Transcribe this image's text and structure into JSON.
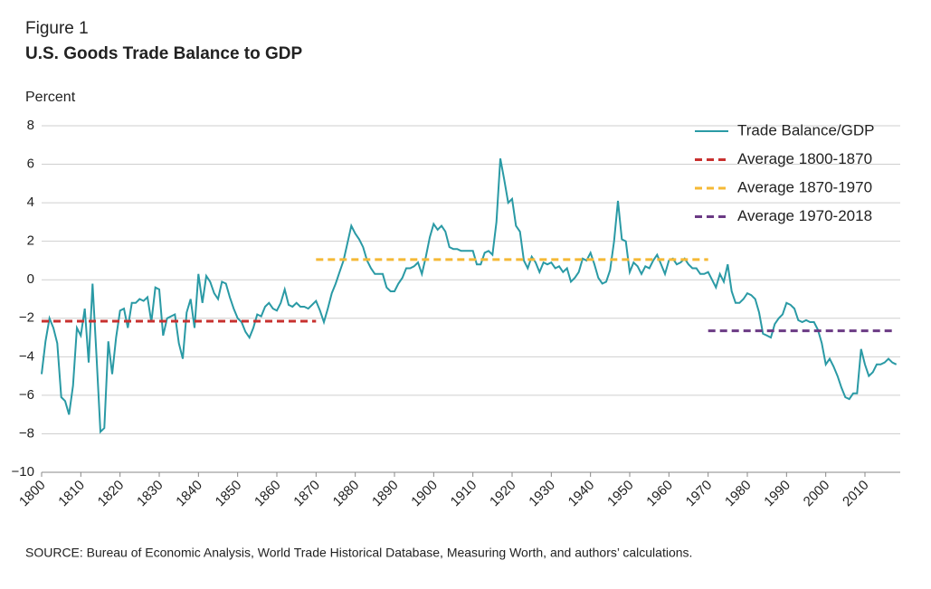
{
  "chart_data": {
    "type": "line",
    "label": "Figure 1",
    "title": "U.S. Goods Trade Balance to GDP",
    "y_axis_label": "Percent",
    "source": "SOURCE: Bureau of Economic Analysis, World Trade Historical Database, Measuring Worth, and authors’ calculations.",
    "xlim": [
      1800,
      2019
    ],
    "ylim": [
      -10,
      8
    ],
    "xticks": [
      1800,
      1810,
      1820,
      1830,
      1840,
      1850,
      1860,
      1870,
      1880,
      1890,
      1900,
      1910,
      1920,
      1930,
      1940,
      1950,
      1960,
      1970,
      1980,
      1990,
      2000,
      2010
    ],
    "yticks": [
      {
        "value": -10,
        "label": "−10"
      },
      {
        "value": -8,
        "label": "−8"
      },
      {
        "value": -6,
        "label": "−6"
      },
      {
        "value": -4,
        "label": "−4"
      },
      {
        "value": -2,
        "label": "−2"
      },
      0,
      2,
      4,
      6,
      8
    ],
    "grid": true,
    "legend": "upper right",
    "series": [
      {
        "name": "Trade Balance/GDP",
        "color": "#2a9aa5",
        "dashed": false,
        "x": [
          1800,
          1801,
          1802,
          1803,
          1804,
          1805,
          1806,
          1807,
          1808,
          1809,
          1810,
          1811,
          1812,
          1813,
          1814,
          1815,
          1816,
          1817,
          1818,
          1819,
          1820,
          1821,
          1822,
          1823,
          1824,
          1825,
          1826,
          1827,
          1828,
          1829,
          1830,
          1831,
          1832,
          1833,
          1834,
          1835,
          1836,
          1837,
          1838,
          1839,
          1840,
          1841,
          1842,
          1843,
          1844,
          1845,
          1846,
          1847,
          1848,
          1849,
          1850,
          1851,
          1852,
          1853,
          1854,
          1855,
          1856,
          1857,
          1858,
          1859,
          1860,
          1861,
          1862,
          1863,
          1864,
          1865,
          1866,
          1867,
          1868,
          1869,
          1870,
          1871,
          1872,
          1873,
          1874,
          1875,
          1876,
          1877,
          1878,
          1879,
          1880,
          1881,
          1882,
          1883,
          1884,
          1885,
          1886,
          1887,
          1888,
          1889,
          1890,
          1891,
          1892,
          1893,
          1894,
          1895,
          1896,
          1897,
          1898,
          1899,
          1900,
          1901,
          1902,
          1903,
          1904,
          1905,
          1906,
          1907,
          1908,
          1909,
          1910,
          1911,
          1912,
          1913,
          1914,
          1915,
          1916,
          1917,
          1918,
          1919,
          1920,
          1921,
          1922,
          1923,
          1924,
          1925,
          1926,
          1927,
          1928,
          1929,
          1930,
          1931,
          1932,
          1933,
          1934,
          1935,
          1936,
          1937,
          1938,
          1939,
          1940,
          1941,
          1942,
          1943,
          1944,
          1945,
          1946,
          1947,
          1948,
          1949,
          1950,
          1951,
          1952,
          1953,
          1954,
          1955,
          1956,
          1957,
          1958,
          1959,
          1960,
          1961,
          1962,
          1963,
          1964,
          1965,
          1966,
          1967,
          1968,
          1969,
          1970,
          1971,
          1972,
          1973,
          1974,
          1975,
          1976,
          1977,
          1978,
          1979,
          1980,
          1981,
          1982,
          1983,
          1984,
          1985,
          1986,
          1987,
          1988,
          1989,
          1990,
          1991,
          1992,
          1993,
          1994,
          1995,
          1996,
          1997,
          1998,
          1999,
          2000,
          2001,
          2002,
          2003,
          2004,
          2005,
          2006,
          2007,
          2008,
          2009,
          2010,
          2011,
          2012,
          2013,
          2014,
          2015,
          2016,
          2017,
          2018
        ],
        "values": [
          -4.9,
          -3.2,
          -2.0,
          -2.5,
          -3.3,
          -6.1,
          -6.3,
          -7.0,
          -5.5,
          -2.5,
          -2.9,
          -1.5,
          -4.3,
          -0.2,
          -4.0,
          -7.9,
          -7.7,
          -3.2,
          -4.9,
          -3.0,
          -1.6,
          -1.5,
          -2.5,
          -1.2,
          -1.2,
          -1.0,
          -1.1,
          -0.9,
          -2.2,
          -0.4,
          -0.5,
          -2.9,
          -2.0,
          -1.9,
          -1.8,
          -3.3,
          -4.1,
          -1.7,
          -1.0,
          -2.5,
          0.3,
          -1.2,
          0.2,
          -0.1,
          -0.7,
          -1.0,
          -0.1,
          -0.2,
          -0.9,
          -1.5,
          -2.0,
          -2.2,
          -2.7,
          -3.0,
          -2.5,
          -1.8,
          -1.9,
          -1.4,
          -1.2,
          -1.5,
          -1.6,
          -1.2,
          -0.5,
          -1.3,
          -1.4,
          -1.2,
          -1.4,
          -1.4,
          -1.5,
          -1.3,
          -1.1,
          -1.6,
          -2.2,
          -1.5,
          -0.7,
          -0.2,
          0.4,
          1.0,
          1.9,
          2.8,
          2.4,
          2.1,
          1.7,
          1.0,
          0.6,
          0.3,
          0.3,
          0.3,
          -0.4,
          -0.6,
          -0.6,
          -0.2,
          0.1,
          0.6,
          0.6,
          0.7,
          0.9,
          0.3,
          1.2,
          2.2,
          2.9,
          2.6,
          2.8,
          2.5,
          1.7,
          1.6,
          1.6,
          1.5,
          1.5,
          1.5,
          1.5,
          0.8,
          0.8,
          1.4,
          1.5,
          1.3,
          3.0,
          6.3,
          5.2,
          4.0,
          4.2,
          2.8,
          2.5,
          1.0,
          0.6,
          1.2,
          0.9,
          0.4,
          0.9,
          0.8,
          0.9,
          0.6,
          0.7,
          0.4,
          0.6,
          -0.1,
          0.1,
          0.4,
          1.1,
          1.0,
          1.4,
          0.8,
          0.1,
          -0.2,
          -0.1,
          0.5,
          2.0,
          4.1,
          2.1,
          2.0,
          0.4,
          0.9,
          0.7,
          0.3,
          0.7,
          0.6,
          1.0,
          1.3,
          0.8,
          0.3,
          1.0,
          1.1,
          0.8,
          0.9,
          1.1,
          0.8,
          0.6,
          0.6,
          0.3,
          0.3,
          0.4,
          0.0,
          -0.4,
          0.3,
          -0.1,
          0.8,
          -0.6,
          -1.2,
          -1.2,
          -1.0,
          -0.7,
          -0.8,
          -1.0,
          -1.7,
          -2.8,
          -2.9,
          -3.0,
          -2.3,
          -2.0,
          -1.8,
          -1.2,
          -1.3,
          -1.5,
          -2.1,
          -2.2,
          -2.1,
          -2.2,
          -2.2,
          -2.6,
          -3.3,
          -4.4,
          -4.1,
          -4.5,
          -5.0,
          -5.6,
          -6.1,
          -6.2,
          -5.9,
          -5.9,
          -3.6,
          -4.4,
          -5.0,
          -4.8,
          -4.4,
          -4.4,
          -4.3,
          -4.1,
          -4.3,
          -4.4
        ]
      },
      {
        "name": "Average 1800-1870",
        "color": "#c8312f",
        "dashed": true,
        "x": [
          1800,
          1870
        ],
        "values": [
          -2.15,
          -2.15
        ]
      },
      {
        "name": "Average 1870-1970",
        "color": "#f5b935",
        "dashed": true,
        "x": [
          1870,
          1970
        ],
        "values": [
          1.05,
          1.05
        ]
      },
      {
        "name": "Average 1970-2018",
        "color": "#6b3a84",
        "dashed": true,
        "x": [
          1970,
          2018
        ],
        "values": [
          -2.65,
          -2.65
        ]
      }
    ]
  }
}
